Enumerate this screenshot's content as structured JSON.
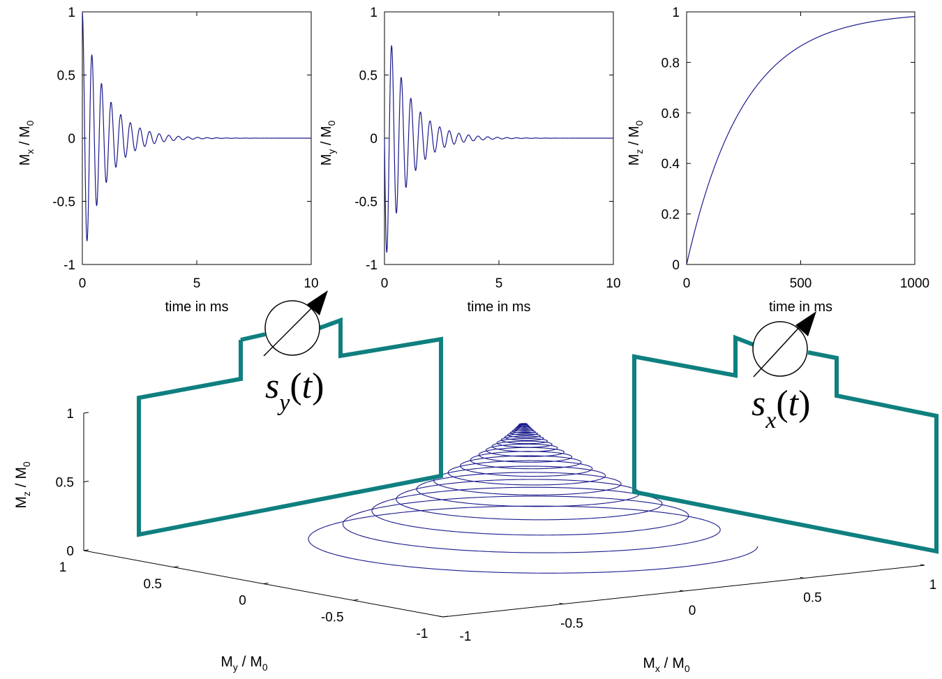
{
  "colors": {
    "trace": "#1a1a8c",
    "coil": "#0f7f7f",
    "axis": "#000000"
  },
  "chart_data": [
    {
      "type": "line",
      "id": "mx",
      "series": [
        {
          "kind": "damped_cosine",
          "amplitude": 1.0,
          "period_ms": 0.42,
          "t2_ms": 1.0,
          "t_start": 0,
          "t_end": 10
        }
      ],
      "xlabel": "time in ms",
      "ylabel": {
        "main": "M",
        "sub1": "x",
        "sep": " / M",
        "sub2": "0"
      },
      "xlim": [
        0,
        10
      ],
      "ylim": [
        -1,
        1
      ],
      "xticks": [
        0,
        5,
        10
      ],
      "yticks": [
        -1,
        -0.5,
        0,
        0.5,
        1
      ],
      "xticklabels": [
        "0",
        "5",
        "10"
      ],
      "yticklabels": [
        "-1",
        "-0.5",
        "0",
        "0.5",
        "1"
      ],
      "grid": false
    },
    {
      "type": "line",
      "id": "my",
      "series": [
        {
          "kind": "damped_sine",
          "amplitude": 1.0,
          "period_ms": 0.42,
          "t2_ms": 1.0,
          "t_start": 0,
          "t_end": 10
        }
      ],
      "xlabel": "time in ms",
      "ylabel": {
        "main": "M",
        "sub1": "y",
        "sep": " / M",
        "sub2": "0"
      },
      "xlim": [
        0,
        10
      ],
      "ylim": [
        -1,
        1
      ],
      "xticks": [
        0,
        5,
        10
      ],
      "yticks": [
        -1,
        -0.5,
        0,
        0.5,
        1
      ],
      "xticklabels": [
        "0",
        "5",
        "10"
      ],
      "yticklabels": [
        "-1",
        "-0.5",
        "0",
        "0.5",
        "1"
      ],
      "grid": false
    },
    {
      "type": "line",
      "id": "mz",
      "series": [
        {
          "kind": "exp_recovery",
          "t1_ms": 250,
          "t_start": 0,
          "t_end": 1000
        }
      ],
      "xlabel": "time in ms",
      "ylabel": {
        "main": "M",
        "sub1": "z",
        "sep": " / M",
        "sub2": "0"
      },
      "xlim": [
        0,
        1000
      ],
      "ylim": [
        0,
        1
      ],
      "xticks": [
        0,
        500,
        1000
      ],
      "yticks": [
        0,
        0.2,
        0.4,
        0.6,
        0.8,
        1
      ],
      "xticklabels": [
        "0",
        "500",
        "1000"
      ],
      "yticklabels": [
        "0",
        "0.2",
        "0.4",
        "0.6",
        "0.8",
        "1"
      ],
      "grid": false
    },
    {
      "type": "line3d",
      "id": "trajectory",
      "series": [
        {
          "kind": "precession_spiral",
          "turns": 24,
          "xy_amplitude": 1.0,
          "z_from": 0,
          "z_to": 0.95
        }
      ],
      "xlabel": {
        "main": "M",
        "sub1": "x",
        "sep": " / M",
        "sub2": "0"
      },
      "ylabel": {
        "main": "M",
        "sub1": "y",
        "sep": " / M",
        "sub2": "0"
      },
      "zlabel": {
        "main": "M",
        "sub1": "z",
        "sep": " / M",
        "sub2": "0"
      },
      "xlim": [
        -1,
        1
      ],
      "ylim": [
        -1,
        1
      ],
      "zlim": [
        0,
        1
      ],
      "xticklabels": [
        "-1",
        "-0.5",
        "0",
        "0.5",
        "1"
      ],
      "yticklabels": [
        "-1",
        "-0.5",
        "0",
        "0.5",
        "1"
      ],
      "zticklabels": [
        "0",
        "0.5",
        "1"
      ]
    }
  ],
  "coils": [
    {
      "id": "coil-y",
      "signal": {
        "symbol": "s",
        "sub": "y",
        "open": "(",
        "arg": "t",
        "close": ")"
      }
    },
    {
      "id": "coil-x",
      "signal": {
        "symbol": "s",
        "sub": "x",
        "open": "(",
        "arg": "t",
        "close": ")"
      }
    }
  ]
}
